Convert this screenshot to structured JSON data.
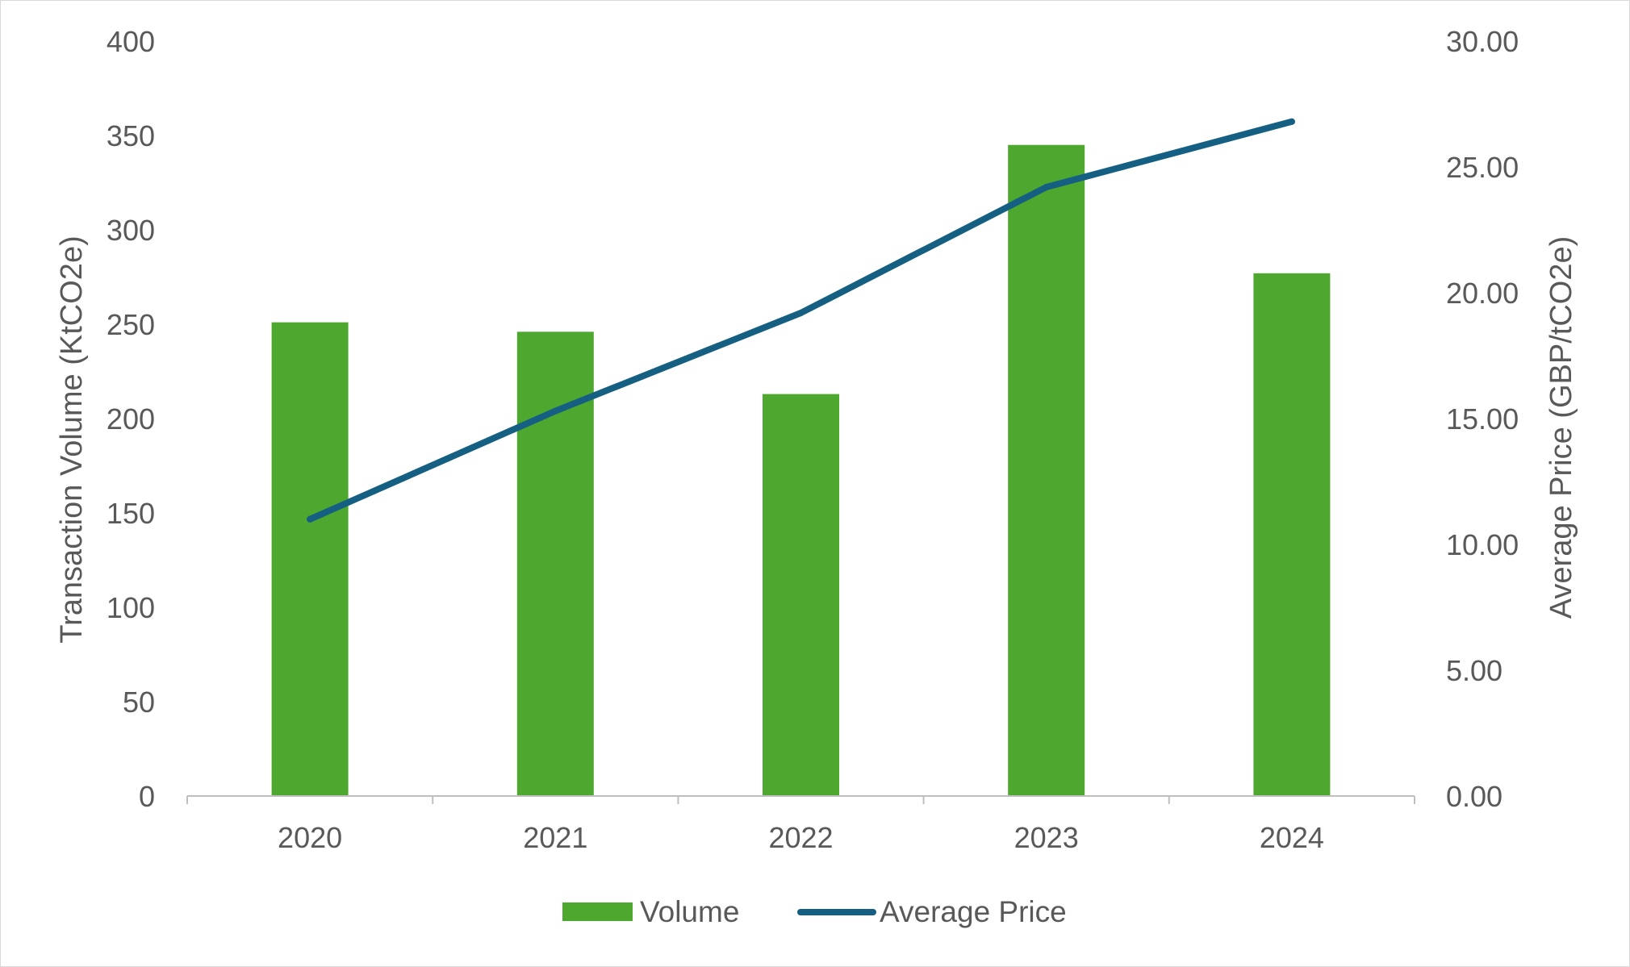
{
  "chart_data": {
    "type": "bar+line",
    "categories": [
      "2020",
      "2021",
      "2022",
      "2023",
      "2024"
    ],
    "series": [
      {
        "name": "Volume",
        "type": "bar",
        "axis": "left",
        "values": [
          251,
          246,
          213,
          345,
          277
        ],
        "color": "#4ea72e"
      },
      {
        "name": "Average Price",
        "type": "line",
        "axis": "right",
        "values": [
          11.0,
          15.3,
          19.2,
          24.2,
          26.8
        ],
        "color": "#156082"
      }
    ],
    "ylabel": "Transaction Volume (KtCO2e)",
    "ylabel_right": "Average Price (GBP/tCO2e)",
    "ylim": [
      0,
      400
    ],
    "ylim_right": [
      0,
      30
    ],
    "yticks": [
      "0",
      "50",
      "100",
      "150",
      "200",
      "250",
      "300",
      "350",
      "400"
    ],
    "yticks_right": [
      "0.00",
      "5.00",
      "10.00",
      "15.00",
      "20.00",
      "25.00",
      "30.00"
    ],
    "grid": false,
    "legend_position": "bottom"
  }
}
